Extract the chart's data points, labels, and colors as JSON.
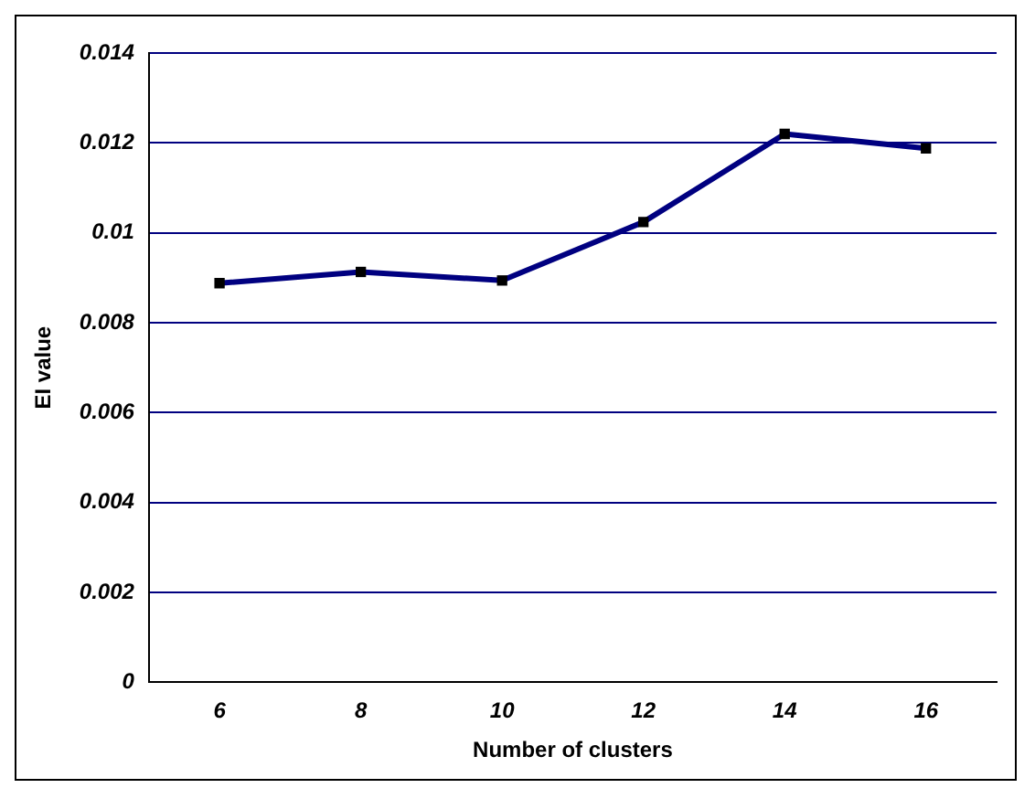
{
  "chart_data": {
    "type": "line",
    "xlabel": "Number of clusters",
    "ylabel": "EI value",
    "categories": [
      "6",
      "8",
      "10",
      "12",
      "14",
      "16"
    ],
    "series": [
      {
        "color": "#000080",
        "values": [
          0.00888,
          0.00913,
          0.00894,
          0.01024,
          0.0122,
          0.01188
        ]
      }
    ],
    "ylim": [
      0,
      0.014
    ],
    "yticks": [
      0,
      0.002,
      0.004,
      0.006,
      0.008,
      {
        "value": 0.01,
        "label": "0.01"
      },
      0.012,
      0.014
    ],
    "grid": "y",
    "legend": false,
    "marker": "square",
    "line_style": "solid"
  }
}
